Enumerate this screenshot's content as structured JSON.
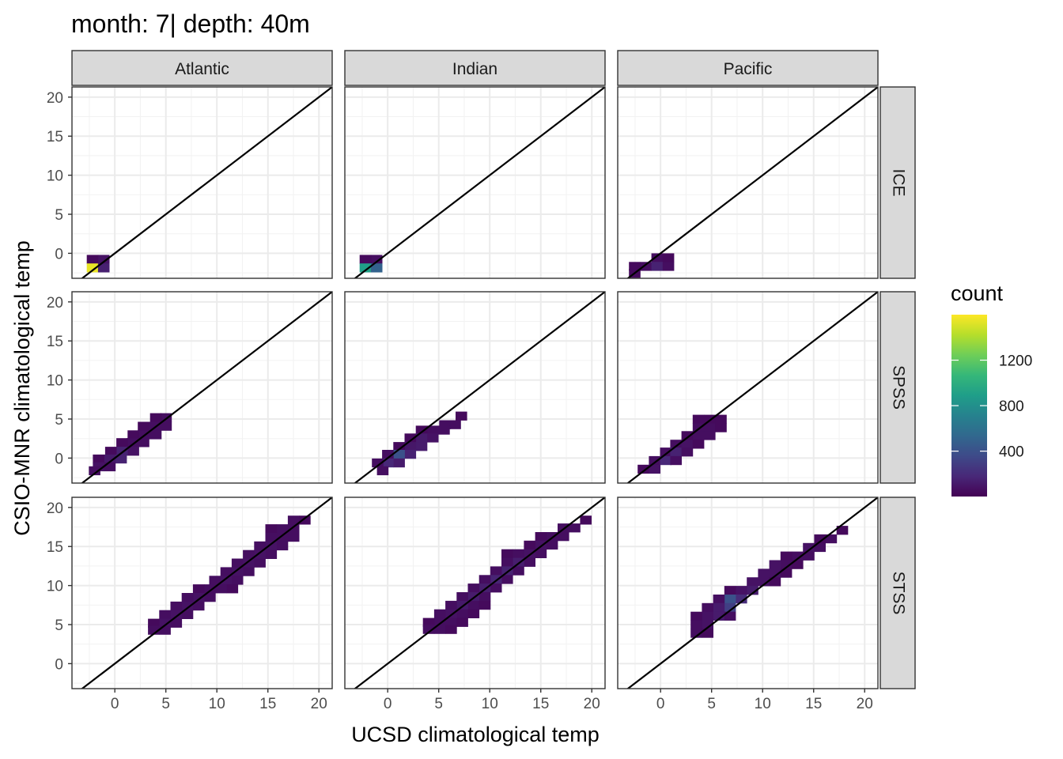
{
  "chart_data": {
    "type": "heatmap",
    "title": "month: 7| depth: 40m",
    "xlabel": "UCSD climatological temp",
    "ylabel": "CSIO-MNR climatological temp",
    "col_facets": [
      "Atlantic",
      "Indian",
      "Pacific"
    ],
    "row_facets": [
      "ICE",
      "SPSS",
      "STSS"
    ],
    "xlim": [
      -4.2,
      21.3
    ],
    "ylim": [
      -3.2,
      21.3
    ],
    "x_ticks": [
      0,
      5,
      10,
      15,
      20
    ],
    "y_ticks": [
      0,
      5,
      10,
      15,
      20
    ],
    "bin_width": 1.1,
    "reference_line": "y = x",
    "grid": true,
    "legend": {
      "title": "count",
      "position": "right",
      "ticks": [
        400,
        800,
        1200
      ],
      "range": [
        1,
        1600
      ],
      "colors": [
        "#440154",
        "#482878",
        "#3e4a89",
        "#31688e",
        "#26828e",
        "#1f9e89",
        "#35b779",
        "#6ece58",
        "#b5de2b",
        "#fde725"
      ]
    },
    "panels": [
      {
        "col": "Atlantic",
        "row": "ICE",
        "bins": [
          {
            "x": -1.1,
            "y": -0.75,
            "count": 80
          },
          {
            "x": -2.2,
            "y": -0.75,
            "count": 40
          },
          {
            "x": -2.2,
            "y": -1.85,
            "count": 1550
          },
          {
            "x": -1.1,
            "y": -1.85,
            "count": 140
          }
        ]
      },
      {
        "col": "Indian",
        "row": "ICE",
        "bins": [
          {
            "x": -1.1,
            "y": -0.75,
            "count": 60
          },
          {
            "x": -2.2,
            "y": -0.75,
            "count": 40
          },
          {
            "x": -2.2,
            "y": -1.85,
            "count": 900
          },
          {
            "x": -1.1,
            "y": -1.85,
            "count": 500
          }
        ]
      },
      {
        "col": "Pacific",
        "row": "ICE",
        "bins": [
          {
            "x": -0.35,
            "y": -0.55,
            "count": 60
          },
          {
            "x": 0.75,
            "y": -0.55,
            "count": 40
          },
          {
            "x": -1.45,
            "y": -1.65,
            "count": 60
          },
          {
            "x": -0.35,
            "y": -1.65,
            "count": 150
          },
          {
            "x": 0.75,
            "y": -1.65,
            "count": 60
          },
          {
            "x": -2.55,
            "y": -1.65,
            "count": 40
          },
          {
            "x": -2.55,
            "y": -2.55,
            "count": 40
          }
        ]
      },
      {
        "col": "Atlantic",
        "row": "SPSS",
        "bins": [
          {
            "x": 5.0,
            "y": 5.2,
            "count": 60
          },
          {
            "x": 4.0,
            "y": 5.2,
            "count": 40
          },
          {
            "x": 5.0,
            "y": 4.1,
            "count": 60
          },
          {
            "x": 3.9,
            "y": 4.1,
            "count": 60
          },
          {
            "x": 2.8,
            "y": 4.1,
            "count": 40
          },
          {
            "x": 4.0,
            "y": 3.0,
            "count": 60
          },
          {
            "x": 2.9,
            "y": 3.0,
            "count": 60
          },
          {
            "x": 1.8,
            "y": 3.0,
            "count": 40
          },
          {
            "x": 2.8,
            "y": 2.0,
            "count": 60
          },
          {
            "x": 1.7,
            "y": 2.0,
            "count": 60
          },
          {
            "x": 0.7,
            "y": 2.0,
            "count": 40
          },
          {
            "x": 1.8,
            "y": 0.9,
            "count": 80
          },
          {
            "x": 0.7,
            "y": 0.9,
            "count": 150
          },
          {
            "x": -0.4,
            "y": 0.9,
            "count": 40
          },
          {
            "x": 0.6,
            "y": -0.1,
            "count": 150
          },
          {
            "x": -0.5,
            "y": -0.1,
            "count": 110
          },
          {
            "x": -1.6,
            "y": -0.1,
            "count": 40
          },
          {
            "x": -0.5,
            "y": -1.1,
            "count": 60
          },
          {
            "x": -1.6,
            "y": -1.1,
            "count": 80
          },
          {
            "x": -2.0,
            "y": -1.6,
            "count": 60
          }
        ]
      },
      {
        "col": "Indian",
        "row": "SPSS",
        "bins": [
          {
            "x": 7.2,
            "y": 5.4,
            "count": 40
          },
          {
            "x": 6.6,
            "y": 4.3,
            "count": 60
          },
          {
            "x": 5.6,
            "y": 4.3,
            "count": 60
          },
          {
            "x": 5.5,
            "y": 3.6,
            "count": 60
          },
          {
            "x": 4.4,
            "y": 3.6,
            "count": 60
          },
          {
            "x": 3.3,
            "y": 3.6,
            "count": 40
          },
          {
            "x": 4.4,
            "y": 2.6,
            "count": 80
          },
          {
            "x": 3.3,
            "y": 2.6,
            "count": 120
          },
          {
            "x": 2.2,
            "y": 2.6,
            "count": 40
          },
          {
            "x": 3.3,
            "y": 1.5,
            "count": 120
          },
          {
            "x": 2.2,
            "y": 1.5,
            "count": 100
          },
          {
            "x": 1.1,
            "y": 1.5,
            "count": 40
          },
          {
            "x": 2.2,
            "y": 0.5,
            "count": 150
          },
          {
            "x": 1.1,
            "y": 0.5,
            "count": 400
          },
          {
            "x": 0.0,
            "y": 0.5,
            "count": 60
          },
          {
            "x": 1.1,
            "y": -0.6,
            "count": 120
          },
          {
            "x": 0.0,
            "y": -0.6,
            "count": 180
          },
          {
            "x": -1.0,
            "y": -0.6,
            "count": 60
          },
          {
            "x": -0.5,
            "y": -1.6,
            "count": 60
          }
        ]
      },
      {
        "col": "Pacific",
        "row": "SPSS",
        "bins": [
          {
            "x": 3.7,
            "y": 5.0,
            "count": 40
          },
          {
            "x": 4.8,
            "y": 5.0,
            "count": 40
          },
          {
            "x": 5.9,
            "y": 5.0,
            "count": 40
          },
          {
            "x": 3.7,
            "y": 3.9,
            "count": 60
          },
          {
            "x": 4.8,
            "y": 3.9,
            "count": 60
          },
          {
            "x": 5.9,
            "y": 3.9,
            "count": 40
          },
          {
            "x": 2.6,
            "y": 2.9,
            "count": 40
          },
          {
            "x": 3.7,
            "y": 2.9,
            "count": 60
          },
          {
            "x": 4.8,
            "y": 2.9,
            "count": 60
          },
          {
            "x": 1.5,
            "y": 1.8,
            "count": 60
          },
          {
            "x": 2.6,
            "y": 1.8,
            "count": 80
          },
          {
            "x": 3.7,
            "y": 1.8,
            "count": 40
          },
          {
            "x": 0.5,
            "y": 0.8,
            "count": 60
          },
          {
            "x": 1.5,
            "y": 0.8,
            "count": 150
          },
          {
            "x": 2.6,
            "y": 0.8,
            "count": 60
          },
          {
            "x": -0.6,
            "y": -0.3,
            "count": 60
          },
          {
            "x": 0.5,
            "y": -0.3,
            "count": 180
          },
          {
            "x": 1.5,
            "y": -0.3,
            "count": 60
          },
          {
            "x": -1.7,
            "y": -1.4,
            "count": 40
          },
          {
            "x": -0.6,
            "y": -1.4,
            "count": 80
          }
        ]
      },
      {
        "col": "Atlantic",
        "row": "STSS",
        "bins": [
          {
            "x": 18.6,
            "y": 18.4,
            "count": 40
          },
          {
            "x": 17.5,
            "y": 18.4,
            "count": 60
          },
          {
            "x": 17.5,
            "y": 17.3,
            "count": 60
          },
          {
            "x": 16.4,
            "y": 17.3,
            "count": 60
          },
          {
            "x": 15.3,
            "y": 17.3,
            "count": 40
          },
          {
            "x": 17.5,
            "y": 16.2,
            "count": 60
          },
          {
            "x": 16.4,
            "y": 16.2,
            "count": 60
          },
          {
            "x": 15.3,
            "y": 16.2,
            "count": 60
          },
          {
            "x": 16.4,
            "y": 15.1,
            "count": 60
          },
          {
            "x": 15.3,
            "y": 15.1,
            "count": 80
          },
          {
            "x": 14.2,
            "y": 15.1,
            "count": 60
          },
          {
            "x": 15.3,
            "y": 14.0,
            "count": 60
          },
          {
            "x": 14.2,
            "y": 14.0,
            "count": 80
          },
          {
            "x": 13.1,
            "y": 14.0,
            "count": 60
          },
          {
            "x": 14.2,
            "y": 12.9,
            "count": 60
          },
          {
            "x": 13.1,
            "y": 12.9,
            "count": 80
          },
          {
            "x": 12.0,
            "y": 12.9,
            "count": 60
          },
          {
            "x": 13.1,
            "y": 11.8,
            "count": 60
          },
          {
            "x": 12.0,
            "y": 11.8,
            "count": 80
          },
          {
            "x": 10.9,
            "y": 11.8,
            "count": 60
          },
          {
            "x": 12.0,
            "y": 10.7,
            "count": 60
          },
          {
            "x": 10.9,
            "y": 10.7,
            "count": 80
          },
          {
            "x": 9.8,
            "y": 10.7,
            "count": 60
          },
          {
            "x": 11.5,
            "y": 9.6,
            "count": 40
          },
          {
            "x": 10.4,
            "y": 9.6,
            "count": 60
          },
          {
            "x": 9.3,
            "y": 9.6,
            "count": 60
          },
          {
            "x": 8.2,
            "y": 9.6,
            "count": 40
          },
          {
            "x": 9.3,
            "y": 8.5,
            "count": 60
          },
          {
            "x": 8.2,
            "y": 8.5,
            "count": 80
          },
          {
            "x": 7.1,
            "y": 8.5,
            "count": 60
          },
          {
            "x": 8.2,
            "y": 7.4,
            "count": 60
          },
          {
            "x": 7.1,
            "y": 7.4,
            "count": 80
          },
          {
            "x": 6.0,
            "y": 7.4,
            "count": 60
          },
          {
            "x": 7.1,
            "y": 6.3,
            "count": 60
          },
          {
            "x": 6.0,
            "y": 6.3,
            "count": 80
          },
          {
            "x": 4.9,
            "y": 6.3,
            "count": 60
          },
          {
            "x": 6.0,
            "y": 5.2,
            "count": 60
          },
          {
            "x": 4.9,
            "y": 5.2,
            "count": 80
          },
          {
            "x": 3.8,
            "y": 5.2,
            "count": 40
          },
          {
            "x": 4.9,
            "y": 4.3,
            "count": 60
          },
          {
            "x": 3.8,
            "y": 4.3,
            "count": 60
          }
        ]
      },
      {
        "col": "Indian",
        "row": "STSS",
        "bins": [
          {
            "x": 19.4,
            "y": 18.4,
            "count": 40
          },
          {
            "x": 18.3,
            "y": 17.4,
            "count": 60
          },
          {
            "x": 17.2,
            "y": 17.4,
            "count": 60
          },
          {
            "x": 17.2,
            "y": 16.3,
            "count": 60
          },
          {
            "x": 16.1,
            "y": 16.3,
            "count": 60
          },
          {
            "x": 15.0,
            "y": 16.3,
            "count": 40
          },
          {
            "x": 16.1,
            "y": 15.2,
            "count": 60
          },
          {
            "x": 15.0,
            "y": 15.2,
            "count": 80
          },
          {
            "x": 13.9,
            "y": 15.2,
            "count": 40
          },
          {
            "x": 15.0,
            "y": 14.1,
            "count": 60
          },
          {
            "x": 13.9,
            "y": 14.1,
            "count": 80
          },
          {
            "x": 12.8,
            "y": 14.1,
            "count": 60
          },
          {
            "x": 11.7,
            "y": 14.1,
            "count": 40
          },
          {
            "x": 13.9,
            "y": 13.0,
            "count": 60
          },
          {
            "x": 12.8,
            "y": 13.0,
            "count": 130
          },
          {
            "x": 11.7,
            "y": 13.0,
            "count": 60
          },
          {
            "x": 12.8,
            "y": 11.9,
            "count": 60
          },
          {
            "x": 11.7,
            "y": 11.9,
            "count": 150
          },
          {
            "x": 10.6,
            "y": 11.9,
            "count": 60
          },
          {
            "x": 11.7,
            "y": 10.8,
            "count": 60
          },
          {
            "x": 10.6,
            "y": 10.8,
            "count": 160
          },
          {
            "x": 9.5,
            "y": 10.8,
            "count": 60
          },
          {
            "x": 10.6,
            "y": 9.7,
            "count": 60
          },
          {
            "x": 9.5,
            "y": 9.7,
            "count": 130
          },
          {
            "x": 8.4,
            "y": 9.7,
            "count": 60
          },
          {
            "x": 9.5,
            "y": 8.6,
            "count": 60
          },
          {
            "x": 8.4,
            "y": 8.6,
            "count": 120
          },
          {
            "x": 7.3,
            "y": 8.6,
            "count": 60
          },
          {
            "x": 8.4,
            "y": 7.5,
            "count": 60
          },
          {
            "x": 7.3,
            "y": 7.5,
            "count": 110
          },
          {
            "x": 6.2,
            "y": 7.5,
            "count": 60
          },
          {
            "x": 9.5,
            "y": 7.5,
            "count": 40
          },
          {
            "x": 7.3,
            "y": 6.4,
            "count": 60
          },
          {
            "x": 6.2,
            "y": 6.4,
            "count": 80
          },
          {
            "x": 5.1,
            "y": 6.4,
            "count": 60
          },
          {
            "x": 8.4,
            "y": 6.4,
            "count": 40
          },
          {
            "x": 6.2,
            "y": 5.3,
            "count": 60
          },
          {
            "x": 5.1,
            "y": 5.3,
            "count": 60
          },
          {
            "x": 4.0,
            "y": 5.3,
            "count": 40
          },
          {
            "x": 7.3,
            "y": 5.3,
            "count": 40
          },
          {
            "x": 4.0,
            "y": 4.4,
            "count": 60
          },
          {
            "x": 5.1,
            "y": 4.4,
            "count": 60
          },
          {
            "x": 6.2,
            "y": 4.4,
            "count": 40
          }
        ]
      },
      {
        "col": "Pacific",
        "row": "STSS",
        "bins": [
          {
            "x": 17.8,
            "y": 17.1,
            "count": 40
          },
          {
            "x": 16.7,
            "y": 16.0,
            "count": 60
          },
          {
            "x": 15.6,
            "y": 16.0,
            "count": 40
          },
          {
            "x": 15.6,
            "y": 14.9,
            "count": 60
          },
          {
            "x": 14.5,
            "y": 14.9,
            "count": 80
          },
          {
            "x": 13.4,
            "y": 13.8,
            "count": 60
          },
          {
            "x": 14.5,
            "y": 13.8,
            "count": 60
          },
          {
            "x": 12.3,
            "y": 13.8,
            "count": 40
          },
          {
            "x": 12.3,
            "y": 12.7,
            "count": 60
          },
          {
            "x": 11.2,
            "y": 12.7,
            "count": 80
          },
          {
            "x": 13.4,
            "y": 12.7,
            "count": 40
          },
          {
            "x": 11.2,
            "y": 11.6,
            "count": 80
          },
          {
            "x": 10.1,
            "y": 11.6,
            "count": 80
          },
          {
            "x": 12.3,
            "y": 11.6,
            "count": 40
          },
          {
            "x": 10.1,
            "y": 10.5,
            "count": 80
          },
          {
            "x": 9.0,
            "y": 10.5,
            "count": 80
          },
          {
            "x": 11.2,
            "y": 10.5,
            "count": 40
          },
          {
            "x": 9.0,
            "y": 9.4,
            "count": 120
          },
          {
            "x": 7.9,
            "y": 9.4,
            "count": 80
          },
          {
            "x": 6.8,
            "y": 9.4,
            "count": 40
          },
          {
            "x": 7.9,
            "y": 8.3,
            "count": 200
          },
          {
            "x": 6.8,
            "y": 8.3,
            "count": 400
          },
          {
            "x": 5.7,
            "y": 8.3,
            "count": 60
          },
          {
            "x": 6.8,
            "y": 7.2,
            "count": 300
          },
          {
            "x": 5.7,
            "y": 7.2,
            "count": 120
          },
          {
            "x": 4.6,
            "y": 7.2,
            "count": 60
          },
          {
            "x": 5.7,
            "y": 6.1,
            "count": 120
          },
          {
            "x": 4.6,
            "y": 6.1,
            "count": 80
          },
          {
            "x": 3.5,
            "y": 6.1,
            "count": 40
          },
          {
            "x": 6.8,
            "y": 6.1,
            "count": 60
          },
          {
            "x": 4.6,
            "y": 5.0,
            "count": 80
          },
          {
            "x": 3.5,
            "y": 5.0,
            "count": 60
          },
          {
            "x": 3.5,
            "y": 3.9,
            "count": 60
          },
          {
            "x": 4.6,
            "y": 3.9,
            "count": 40
          }
        ]
      }
    ]
  }
}
